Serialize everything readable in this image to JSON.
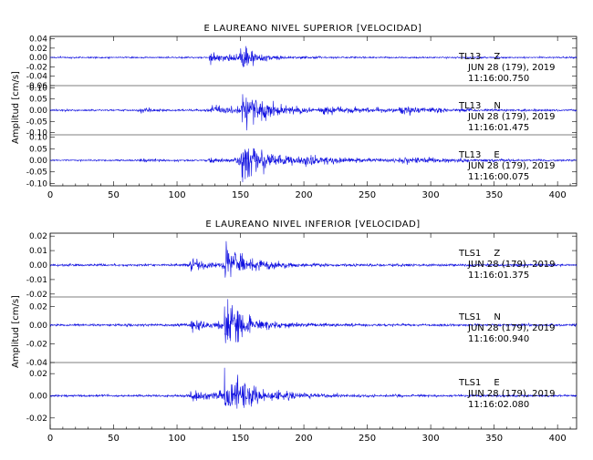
{
  "chart_data": [
    {
      "type": "line",
      "title": "E LAUREANO NIVEL SUPERIOR [VELOCIDAD]",
      "ylabel": "Amplitud [cm/s]",
      "xlim": [
        0,
        415
      ],
      "x_ticks": [
        "0",
        "50",
        "100",
        "150",
        "200",
        "250",
        "300",
        "350",
        "400"
      ],
      "series": [
        {
          "name": "TL13 Z",
          "station": "TL13",
          "component": "Z",
          "date": "JUN 28 (179), 2019",
          "time": "11:16:00.750",
          "y_ticks": [
            "0.04",
            "0.02",
            "0.00",
            "-0.02",
            "-0.04",
            "-0.06"
          ],
          "ylim": [
            -0.06,
            0.045
          ],
          "noise": 0.0016,
          "events": [
            {
              "t": 125,
              "amp": 0.011,
              "dur": 45
            },
            {
              "t": 150,
              "amp": 0.045,
              "dur": 12
            }
          ]
        },
        {
          "name": "TL13 N",
          "station": "TL13",
          "component": "N",
          "date": "JUN 28 (179), 2019",
          "time": "11:16:01.475",
          "y_ticks": [
            "0.10",
            "0.05",
            "0.00",
            "-0.05",
            "-0.10"
          ],
          "ylim": [
            -0.11,
            0.11
          ],
          "noise": 0.004,
          "events": [
            {
              "t": 70,
              "amp": 0.008,
              "dur": 25
            },
            {
              "t": 125,
              "amp": 0.018,
              "dur": 35
            },
            {
              "t": 150,
              "amp": 0.09,
              "dur": 35
            },
            {
              "t": 215,
              "amp": 0.015,
              "dur": 60
            },
            {
              "t": 275,
              "amp": 0.015,
              "dur": 50
            }
          ]
        },
        {
          "name": "TL13 E",
          "station": "TL13",
          "component": "E",
          "date": "JUN 28 (179), 2019",
          "time": "11:16:00.075",
          "y_ticks": [
            "0.10",
            "0.05",
            "0.00",
            "-0.05",
            "-0.10"
          ],
          "ylim": [
            -0.11,
            0.11
          ],
          "noise": 0.003,
          "events": [
            {
              "t": 70,
              "amp": 0.006,
              "dur": 25
            },
            {
              "t": 125,
              "amp": 0.015,
              "dur": 35
            },
            {
              "t": 150,
              "amp": 0.1,
              "dur": 35
            },
            {
              "t": 200,
              "amp": 0.015,
              "dur": 70
            },
            {
              "t": 275,
              "amp": 0.015,
              "dur": 60
            }
          ]
        }
      ]
    },
    {
      "type": "line",
      "title": "E LAUREANO NIVEL INFERIOR [VELOCIDAD]",
      "ylabel": "Amplitud [cm/s]",
      "xlim": [
        0,
        415
      ],
      "x_ticks": [
        "0",
        "50",
        "100",
        "150",
        "200",
        "250",
        "300",
        "350",
        "400"
      ],
      "series": [
        {
          "name": "TLS1 Z",
          "station": "TLS1",
          "component": "Z",
          "date": "JUN 28 (179), 2019",
          "time": "11:16:01.375",
          "y_ticks": [
            "0.02",
            "0.01",
            "0.00",
            "-0.01",
            "-0.02"
          ],
          "ylim": [
            -0.022,
            0.022
          ],
          "noise": 0.0008,
          "events": [
            {
              "t": 110,
              "amp": 0.004,
              "dur": 30
            },
            {
              "t": 137,
              "amp": 0.022,
              "dur": 12
            },
            {
              "t": 150,
              "amp": 0.004,
              "dur": 40
            }
          ]
        },
        {
          "name": "TLS1 N",
          "station": "TLS1",
          "component": "N",
          "date": "JUN 28 (179), 2019",
          "time": "11:16:00.940",
          "y_ticks": [
            "0.02",
            "0.00",
            "-0.02",
            "-0.04"
          ],
          "ylim": [
            -0.04,
            0.03
          ],
          "noise": 0.0012,
          "events": [
            {
              "t": 110,
              "amp": 0.006,
              "dur": 30
            },
            {
              "t": 137,
              "amp": 0.035,
              "dur": 10
            },
            {
              "t": 145,
              "amp": 0.01,
              "dur": 40
            }
          ]
        },
        {
          "name": "TLS1 E",
          "station": "TLS1",
          "component": "E",
          "date": "JUN 28 (179), 2019",
          "time": "11:16:02.080",
          "y_ticks": [
            "0.02",
            "0.00",
            "-0.02"
          ],
          "ylim": [
            -0.03,
            0.03
          ],
          "noise": 0.001,
          "events": [
            {
              "t": 110,
              "amp": 0.006,
              "dur": 30
            },
            {
              "t": 137,
              "amp": 0.03,
              "dur": 10
            },
            {
              "t": 145,
              "amp": 0.012,
              "dur": 40
            }
          ]
        }
      ]
    }
  ],
  "style": {
    "trace_color": "#1010e0",
    "axis_color": "#000000",
    "background": "#ffffff"
  }
}
